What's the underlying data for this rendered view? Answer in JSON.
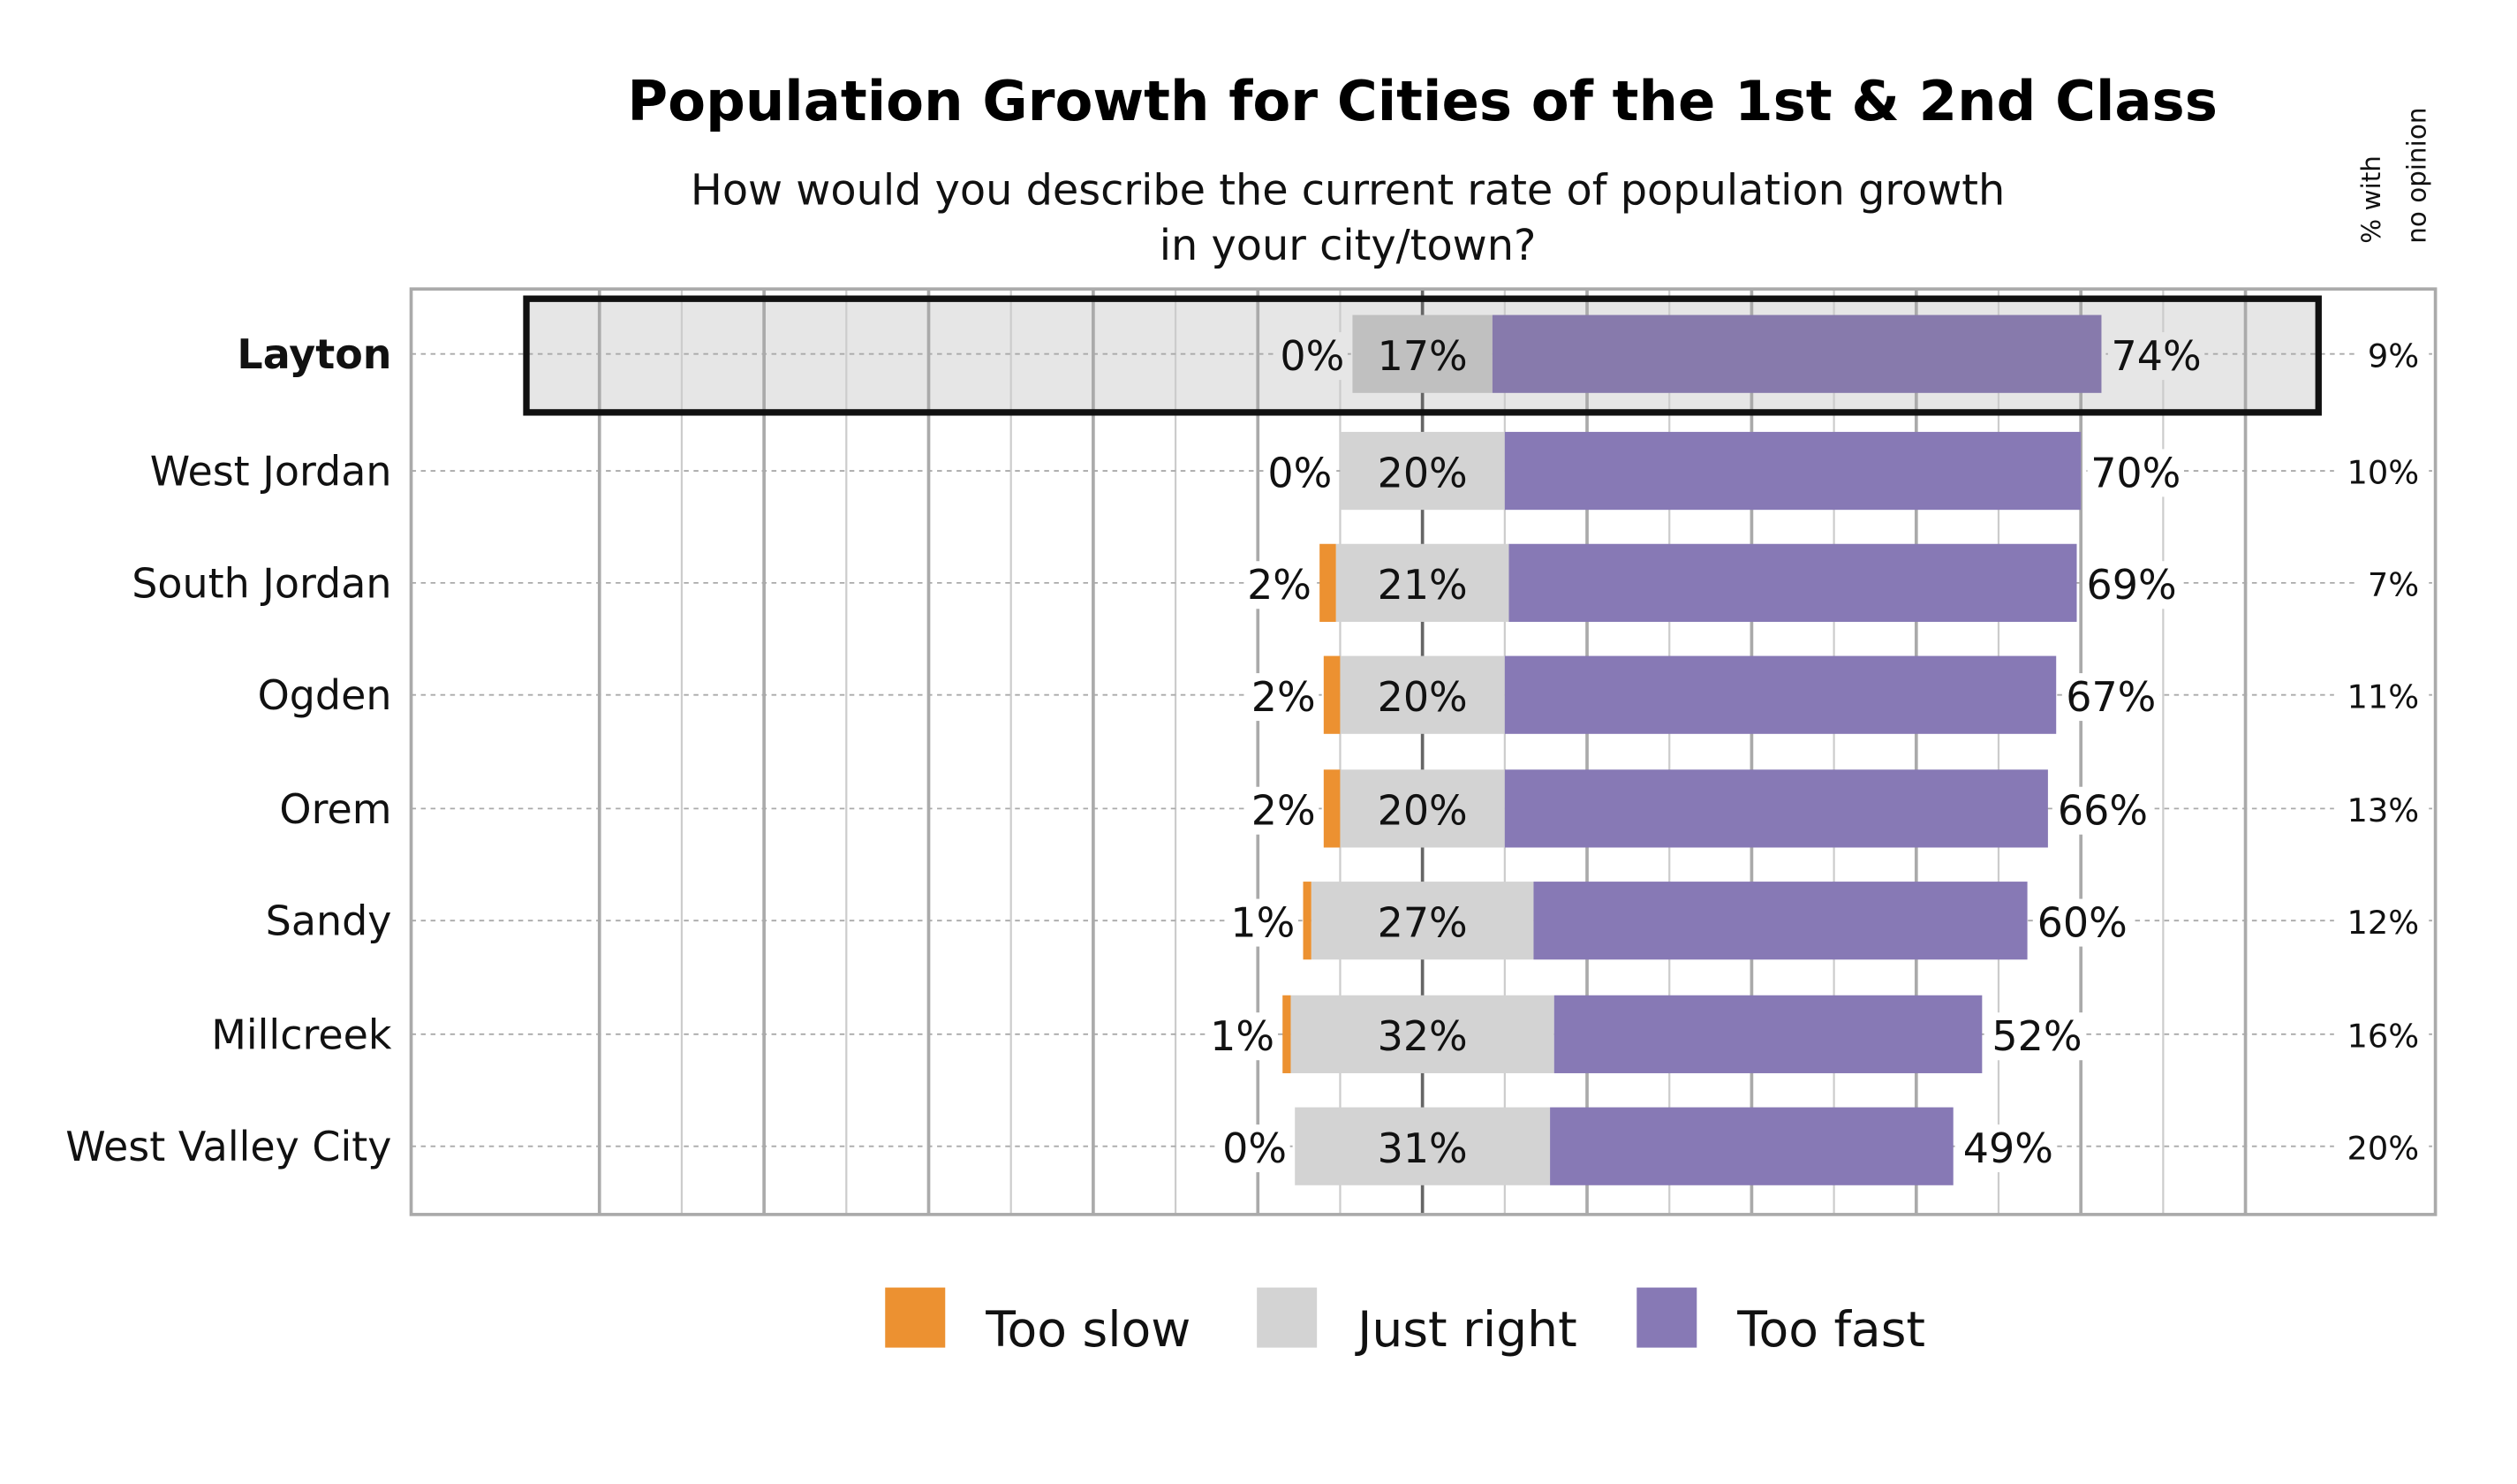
{
  "chart_data": {
    "type": "bar",
    "orientation": "horizontal",
    "stacked": "diverging",
    "title": "Population Growth for Cities of the 1st & 2nd Class",
    "subtitle": [
      "How would you describe the current rate of population growth",
      "in your city/town?"
    ],
    "side_header": [
      "% with",
      "no opinion"
    ],
    "categories": [
      "Layton",
      "West Jordan",
      "South Jordan",
      "Ogden",
      "Orem",
      "Sandy",
      "Millcreek",
      "West Valley City"
    ],
    "highlighted": "Layton",
    "series": [
      {
        "name": "Too slow",
        "color": "#ec9131",
        "values": [
          0,
          0,
          2,
          2,
          2,
          1,
          1,
          0
        ],
        "labels": [
          "0%",
          "0%",
          "2%",
          "2%",
          "2%",
          "1%",
          "1%",
          "0%"
        ]
      },
      {
        "name": "Just right",
        "color": "#d3d3d3",
        "highlight_color": "#c0c0c0",
        "values": [
          17,
          20,
          21,
          20,
          20,
          27,
          32,
          31
        ],
        "labels": [
          "17%",
          "20%",
          "21%",
          "20%",
          "20%",
          "27%",
          "32%",
          "31%"
        ]
      },
      {
        "name": "Too fast",
        "color": "#8779b5",
        "highlight_color": "#877aac",
        "values": [
          74,
          70,
          69,
          67,
          66,
          60,
          52,
          49
        ],
        "labels": [
          "74%",
          "70%",
          "69%",
          "67%",
          "66%",
          "60%",
          "52%",
          "49%"
        ]
      }
    ],
    "no_opinion": [
      "9%",
      "10%",
      "7%",
      "11%",
      "13%",
      "12%",
      "16%",
      "20%"
    ],
    "grid": true,
    "legend_position": "bottom"
  }
}
